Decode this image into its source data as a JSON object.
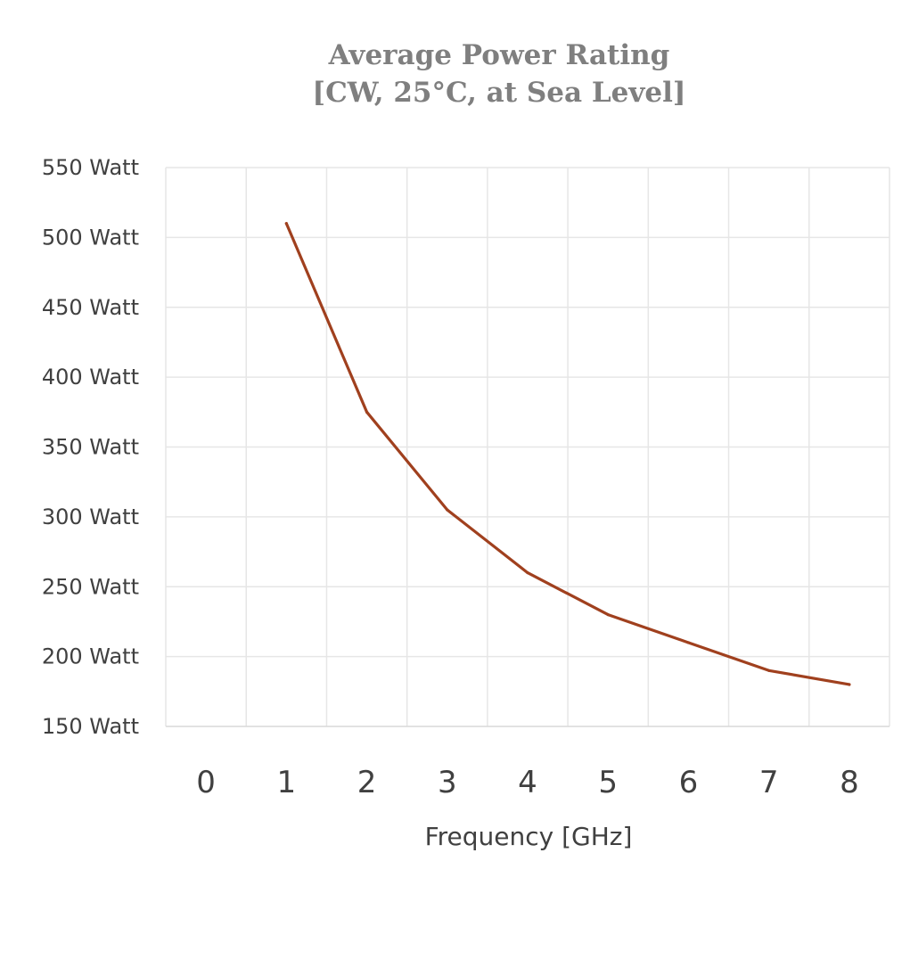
{
  "chart_data": {
    "type": "line",
    "title_lines": [
      "Average Power Rating",
      "[CW, 25°C, at Sea Level]"
    ],
    "xlabel": "Frequency [GHz]",
    "ylabel": "",
    "x_tick_labels": [
      "0",
      "1",
      "2",
      "3",
      "4",
      "5",
      "6",
      "7",
      "8"
    ],
    "y_tick_labels": [
      "550 Watt",
      "500 Watt",
      "450 Watt",
      "400 Watt",
      "350 Watt",
      "300 Watt",
      "250 Watt",
      "200 Watt",
      "150 Watt"
    ],
    "xlim": [
      -0.5,
      8.5
    ],
    "ylim": [
      150,
      550
    ],
    "grid": true,
    "series": [
      {
        "color": "#a0401e",
        "x": [
          1,
          2,
          3,
          4,
          5,
          6,
          7,
          8
        ],
        "y": [
          510,
          375,
          305,
          260,
          230,
          210,
          190,
          180
        ]
      }
    ]
  }
}
